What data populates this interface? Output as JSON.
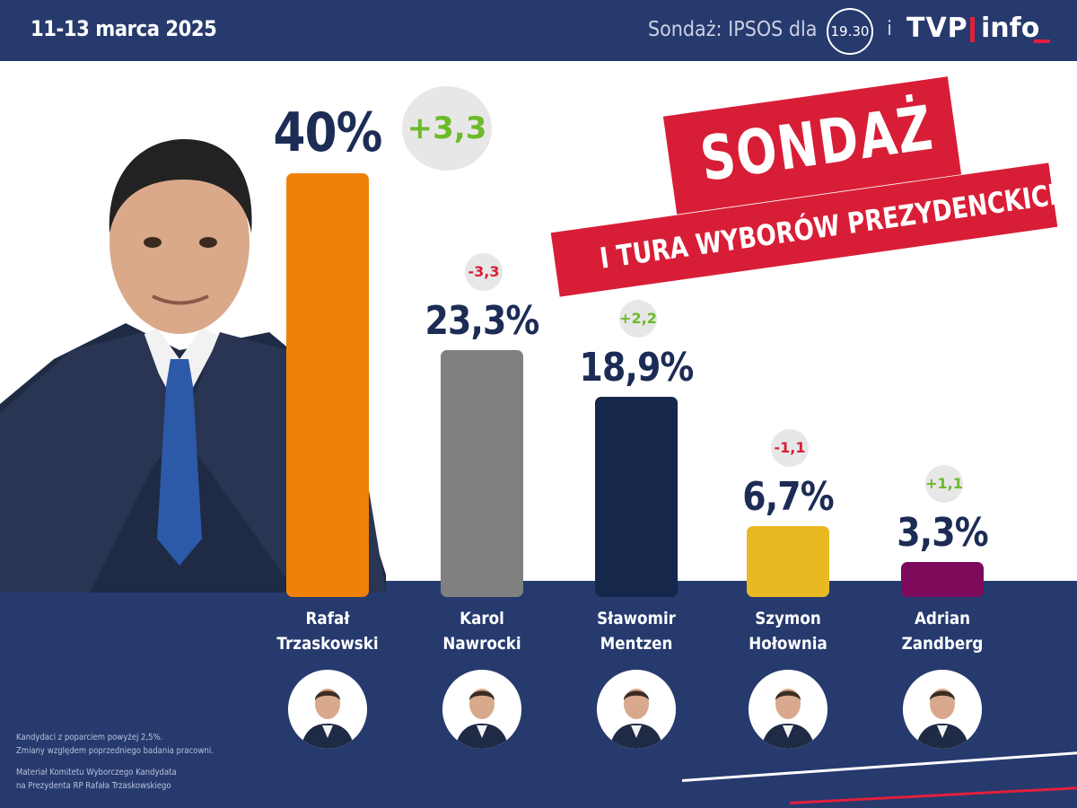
{
  "header": {
    "date": "11-13 marca 2025",
    "source_label": "Sondaż: IPSOS dla",
    "channel_logo": "19.30",
    "conjunction": "i",
    "tvp_logo": "TVP",
    "info_logo": "info"
  },
  "banner": {
    "title": "SONDAŻ",
    "subtitle": "I TURA WYBORÓW PREZYDENCKICH"
  },
  "chart_data": {
    "type": "bar",
    "categories": [
      "Rafał Trzaskowski",
      "Karol Nawrocki",
      "Sławomir Mentzen",
      "Szymon Hołownia",
      "Adrian Zandberg"
    ],
    "values": [
      40,
      23.3,
      18.9,
      6.7,
      3.3
    ],
    "value_labels": [
      "40%",
      "23,3%",
      "18,9%",
      "6,7%",
      "3,3%"
    ],
    "changes": [
      "+3,3",
      "-3,3",
      "+2,2",
      "-1,1",
      "+1,1"
    ],
    "colors": [
      "#ee8209",
      "#808080",
      "#15274a",
      "#e8b923",
      "#7d0a5a"
    ],
    "name_lines": [
      [
        "Rafał",
        "Trzaskowski"
      ],
      [
        "Karol",
        "Nawrocki"
      ],
      [
        "Sławomir",
        "Mentzen"
      ],
      [
        "Szymon",
        "Hołownia"
      ],
      [
        "Adrian",
        "Zandberg"
      ]
    ],
    "unit": "%",
    "grid": false,
    "legend": "none"
  },
  "footnotes": [
    "Kandydaci z poparciem powyżej 2,5%.",
    "Zmiany względem poprzedniego badania pracowni.",
    "Materiał Komitetu Wyborczego Kandydata",
    "na Prezydenta RP Rafała Trzaskowskiego"
  ],
  "colors": {
    "navy": "#263a6e",
    "red": "#d81e36",
    "green": "#6cbb2a",
    "text_dark": "#1c2c55"
  },
  "icons": {
    "portrait": "candidate-portrait-image",
    "avatar": "candidate-avatar-icon"
  }
}
